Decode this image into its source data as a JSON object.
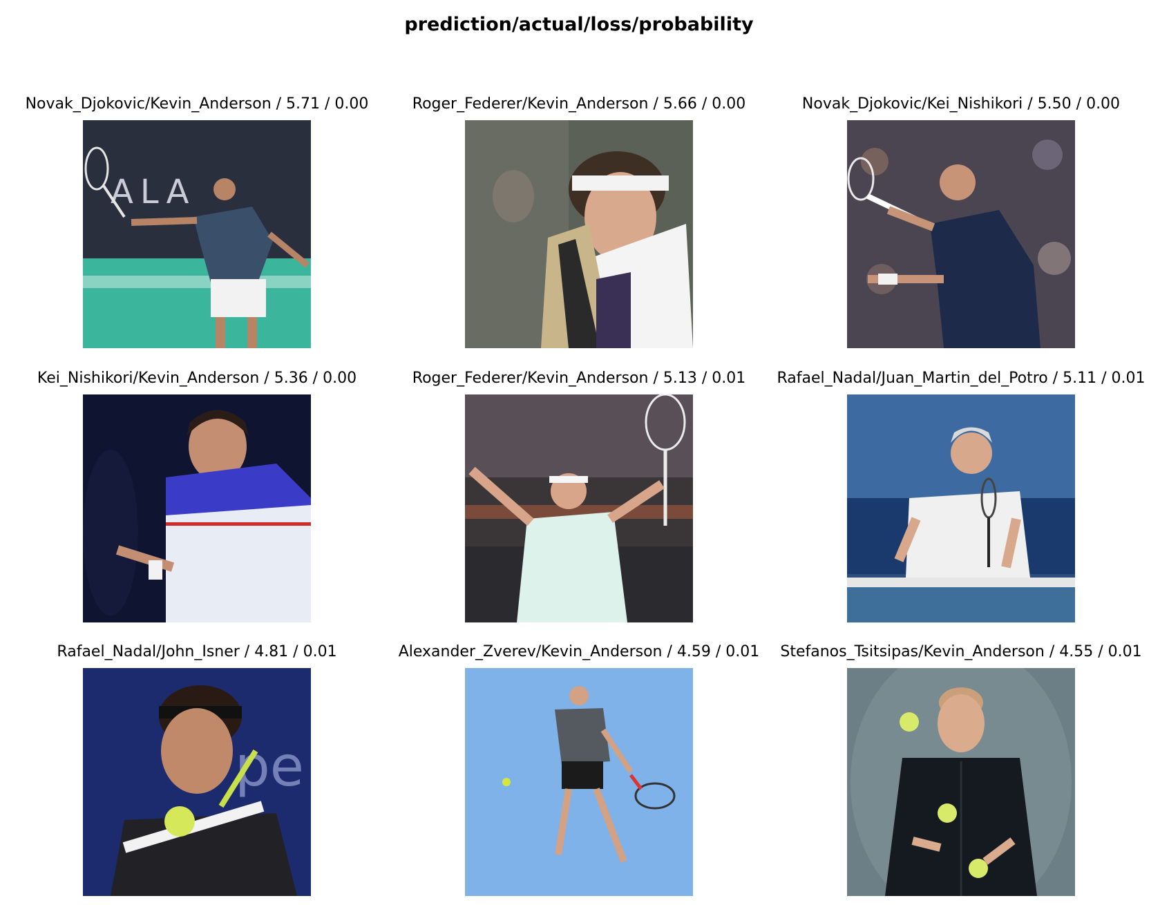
{
  "figure": {
    "title": "prediction/actual/loss/probability",
    "panels": [
      {
        "caption": "Novak_Djokovic/Kevin_Anderson / 5.71 / 0.00",
        "prediction": "Novak_Djokovic",
        "actual": "Kevin_Anderson",
        "loss": 5.71,
        "probability": 0.0,
        "photo": "player-forehand-indoor-court"
      },
      {
        "caption": "Roger_Federer/Kevin_Anderson / 5.66 / 0.00",
        "prediction": "Roger_Federer",
        "actual": "Kevin_Anderson",
        "loss": 5.66,
        "probability": 0.0,
        "photo": "player-with-towel-headband"
      },
      {
        "caption": "Novak_Djokovic/Kei_Nishikori / 5.50 / 0.00",
        "prediction": "Novak_Djokovic",
        "actual": "Kei_Nishikori",
        "loss": 5.5,
        "probability": 0.0,
        "photo": "player-forehand-crowd"
      },
      {
        "caption": "Kei_Nishikori/Kevin_Anderson / 5.36 / 0.00",
        "prediction": "Kei_Nishikori",
        "actual": "Kevin_Anderson",
        "loss": 5.36,
        "probability": 0.0,
        "photo": "player-blue-shirt-pointing"
      },
      {
        "caption": "Roger_Federer/Kevin_Anderson / 5.13 / 0.01",
        "prediction": "Roger_Federer",
        "actual": "Kevin_Anderson",
        "loss": 5.13,
        "probability": 0.01,
        "photo": "player-arms-raised"
      },
      {
        "caption": "Rafael_Nadal/Juan_Martin_del_Potro / 5.11 / 0.01",
        "prediction": "Rafael_Nadal",
        "actual": "Juan_Martin_del_Potro",
        "loss": 5.11,
        "probability": 0.01,
        "photo": "player-celebrating-net"
      },
      {
        "caption": "Rafael_Nadal/John_Isner / 4.81 / 0.01",
        "prediction": "Rafael_Nadal",
        "actual": "John_Isner",
        "loss": 4.81,
        "probability": 0.01,
        "photo": "player-forehand-closeup"
      },
      {
        "caption": "Alexander_Zverev/Kevin_Anderson / 4.59 / 0.01",
        "prediction": "Alexander_Zverev",
        "actual": "Kevin_Anderson",
        "loss": 4.59,
        "probability": 0.01,
        "photo": "player-backhand-blue-court"
      },
      {
        "caption": "Stefanos_Tsitsipas/Kevin_Anderson / 4.55 / 0.01",
        "prediction": "Stefanos_Tsitsipas",
        "actual": "Kevin_Anderson",
        "loss": 4.55,
        "probability": 0.01,
        "photo": "player-juggling-balls"
      }
    ]
  }
}
